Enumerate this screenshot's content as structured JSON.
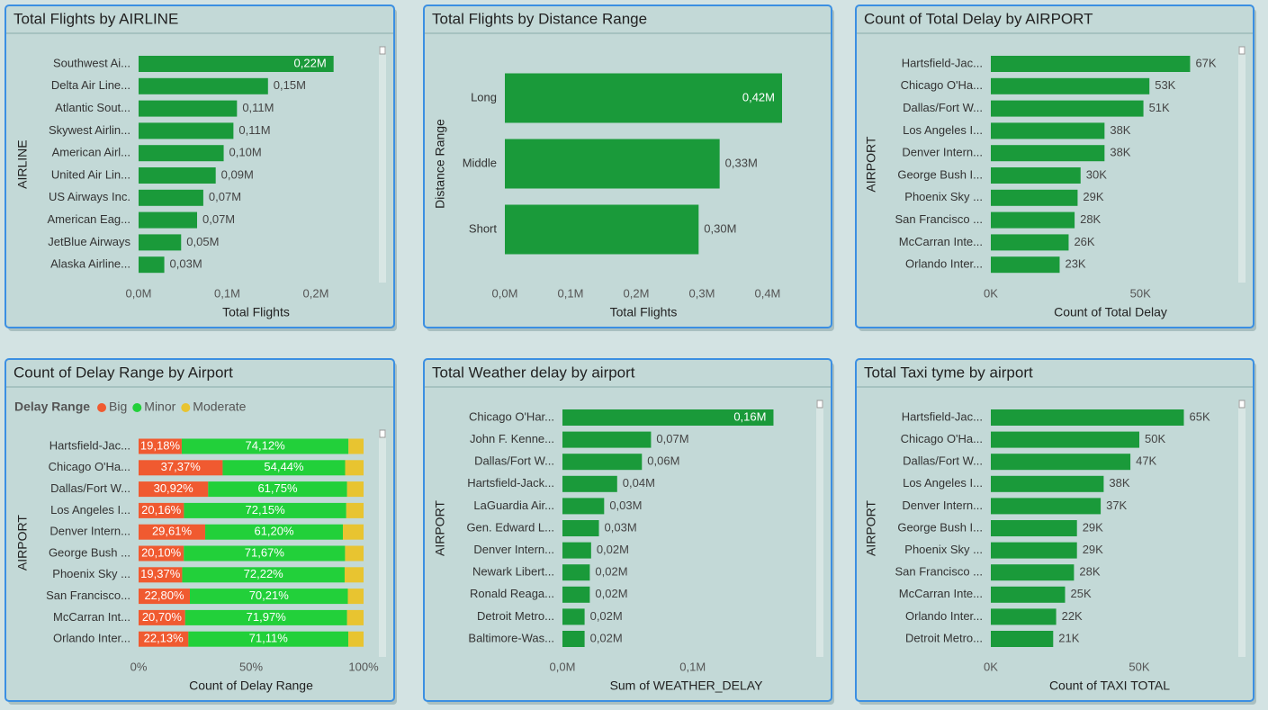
{
  "chart_data": [
    {
      "type": "bar",
      "orientation": "horizontal",
      "title": "Total Flights by AIRLINE",
      "x_label": "Total Flights",
      "y_label": "AIRLINE",
      "color": "#1a9a3a",
      "categories": [
        "Southwest Ai...",
        "Delta Air Line...",
        "Atlantic Sout...",
        "Skywest Airlin...",
        "American Airl...",
        "United Air Lin...",
        "US Airways Inc.",
        "American Eag...",
        "JetBlue Airways",
        "Alaska Airline..."
      ],
      "values": [
        220000,
        146000,
        111000,
        107000,
        96000,
        87000,
        73000,
        66000,
        48000,
        29000
      ],
      "value_labels": [
        "0,22M",
        "0,15M",
        "0,11M",
        "0,11M",
        "0,10M",
        "0,09M",
        "0,07M",
        "0,07M",
        "0,05M",
        "0,03M"
      ],
      "xlim": [
        0,
        265000
      ],
      "xticks": [
        {
          "value": 0,
          "label": "0,0M"
        },
        {
          "value": 100000,
          "label": "0,1M"
        },
        {
          "value": 200000,
          "label": "0,2M"
        }
      ]
    },
    {
      "type": "bar",
      "orientation": "horizontal",
      "title": "Total Flights by Distance Range",
      "x_label": "Total Flights",
      "y_label": "Distance Range",
      "color": "#1a9a3a",
      "categories": [
        "Long",
        "Middle",
        "Short"
      ],
      "values": [
        422000,
        327000,
        295000
      ],
      "value_labels": [
        "0,42M",
        "0,33M",
        "0,30M"
      ],
      "xlim": [
        0,
        422000
      ],
      "xticks": [
        {
          "value": 0,
          "label": "0,0M"
        },
        {
          "value": 100000,
          "label": "0,1M"
        },
        {
          "value": 200000,
          "label": "0,2M"
        },
        {
          "value": 300000,
          "label": "0,3M"
        },
        {
          "value": 400000,
          "label": "0,4M"
        }
      ]
    },
    {
      "type": "bar",
      "orientation": "horizontal",
      "title": "Count of Total Delay by AIRPORT",
      "x_label": "Count of Total Delay",
      "y_label": "AIRPORT",
      "color": "#1a9a3a",
      "categories": [
        "Hartsfield-Jac...",
        "Chicago O'Ha...",
        "Dallas/Fort W...",
        "Los Angeles I...",
        "Denver Intern...",
        "George Bush I...",
        "Phoenix Sky ...",
        "San Francisco ...",
        "McCarran Inte...",
        "Orlando Inter..."
      ],
      "values": [
        66600,
        53000,
        51000,
        38000,
        38000,
        30000,
        29000,
        28000,
        26000,
        23000
      ],
      "value_labels": [
        "67K",
        "53K",
        "51K",
        "38K",
        "38K",
        "30K",
        "29K",
        "28K",
        "26K",
        "23K"
      ],
      "xlim": [
        0,
        80000
      ],
      "xticks": [
        {
          "value": 0,
          "label": "0K"
        },
        {
          "value": 50000,
          "label": "50K"
        }
      ]
    },
    {
      "type": "stacked_bar",
      "orientation": "horizontal",
      "title": "Count of Delay Range by Airport",
      "x_label": "Count of Delay Range",
      "y_label": "AIRPORT",
      "legend_title": "Delay Range",
      "legend": "top-left",
      "categories": [
        "Hartsfield-Jac...",
        "Chicago O'Ha...",
        "Dallas/Fort W...",
        "Los Angeles I...",
        "Denver Intern...",
        "George Bush ...",
        "Phoenix Sky ...",
        "San Francisco...",
        "McCarran Int...",
        "Orlando Inter..."
      ],
      "series": [
        {
          "name": "Big",
          "color": "#f05a30",
          "values": [
            19.18,
            37.37,
            30.92,
            20.16,
            29.61,
            20.1,
            19.37,
            22.8,
            20.7,
            22.13
          ],
          "value_labels": [
            "19,18%",
            "37,37%",
            "30,92%",
            "20,16%",
            "29,61%",
            "20,10%",
            "19,37%",
            "22,80%",
            "20,70%",
            "22,13%"
          ]
        },
        {
          "name": "Minor",
          "color": "#22d03a",
          "values": [
            74.12,
            54.44,
            61.75,
            72.15,
            61.2,
            71.67,
            72.22,
            70.21,
            71.97,
            71.11
          ],
          "value_labels": [
            "74,12%",
            "54,44%",
            "61,75%",
            "72,15%",
            "61,20%",
            "71,67%",
            "72,22%",
            "70,21%",
            "71,97%",
            "71,11%"
          ]
        },
        {
          "name": "Moderate",
          "color": "#e8c430",
          "values": [
            6.7,
            8.19,
            7.33,
            7.69,
            9.19,
            8.23,
            8.41,
            6.99,
            7.33,
            6.76
          ]
        }
      ],
      "xlim": [
        0,
        100
      ],
      "xticks": [
        {
          "value": 0,
          "label": "0%"
        },
        {
          "value": 50,
          "label": "50%"
        },
        {
          "value": 100,
          "label": "100%"
        }
      ]
    },
    {
      "type": "bar",
      "orientation": "horizontal",
      "title": "Total Weather delay by airport",
      "x_label": "Sum of WEATHER_DELAY",
      "y_label": "AIRPORT",
      "color": "#1a9a3a",
      "categories": [
        "Chicago O'Har...",
        "John F. Kenne...",
        "Dallas/Fort W...",
        "Hartsfield-Jack...",
        "LaGuardia Air...",
        "Gen. Edward L...",
        "Denver Intern...",
        "Newark Libert...",
        "Ronald Reaga...",
        "Detroit Metro...",
        "Baltimore-Was..."
      ],
      "values": [
        162000,
        68000,
        61000,
        42000,
        32000,
        28000,
        22000,
        21000,
        21000,
        17000,
        17000
      ],
      "value_labels": [
        "0,16M",
        "0,07M",
        "0,06M",
        "0,04M",
        "0,03M",
        "0,03M",
        "0,02M",
        "0,02M",
        "0,02M",
        "0,02M",
        "0,02M"
      ],
      "xlim": [
        0,
        190000
      ],
      "xticks": [
        {
          "value": 0,
          "label": "0,0M"
        },
        {
          "value": 100000,
          "label": "0,1M"
        }
      ]
    },
    {
      "type": "bar",
      "orientation": "horizontal",
      "title": "Total Taxi tyme by airport",
      "x_label": "Count of TAXI TOTAL",
      "y_label": "AIRPORT",
      "color": "#1a9a3a",
      "categories": [
        "Hartsfield-Jac...",
        "Chicago O'Ha...",
        "Dallas/Fort W...",
        "Los Angeles I...",
        "Denver Intern...",
        "George Bush I...",
        "Phoenix Sky ...",
        "San Francisco ...",
        "McCarran Inte...",
        "Orlando Inter...",
        "Detroit Metro..."
      ],
      "values": [
        65000,
        50000,
        47000,
        38000,
        37000,
        29000,
        29000,
        28000,
        25000,
        22000,
        21000
      ],
      "value_labels": [
        "65K",
        "50K",
        "47K",
        "38K",
        "37K",
        "29K",
        "29K",
        "28K",
        "25K",
        "22K",
        "21K"
      ],
      "xlim": [
        0,
        80000
      ],
      "xticks": [
        {
          "value": 0,
          "label": "0K"
        },
        {
          "value": 50000,
          "label": "50K"
        }
      ]
    }
  ]
}
